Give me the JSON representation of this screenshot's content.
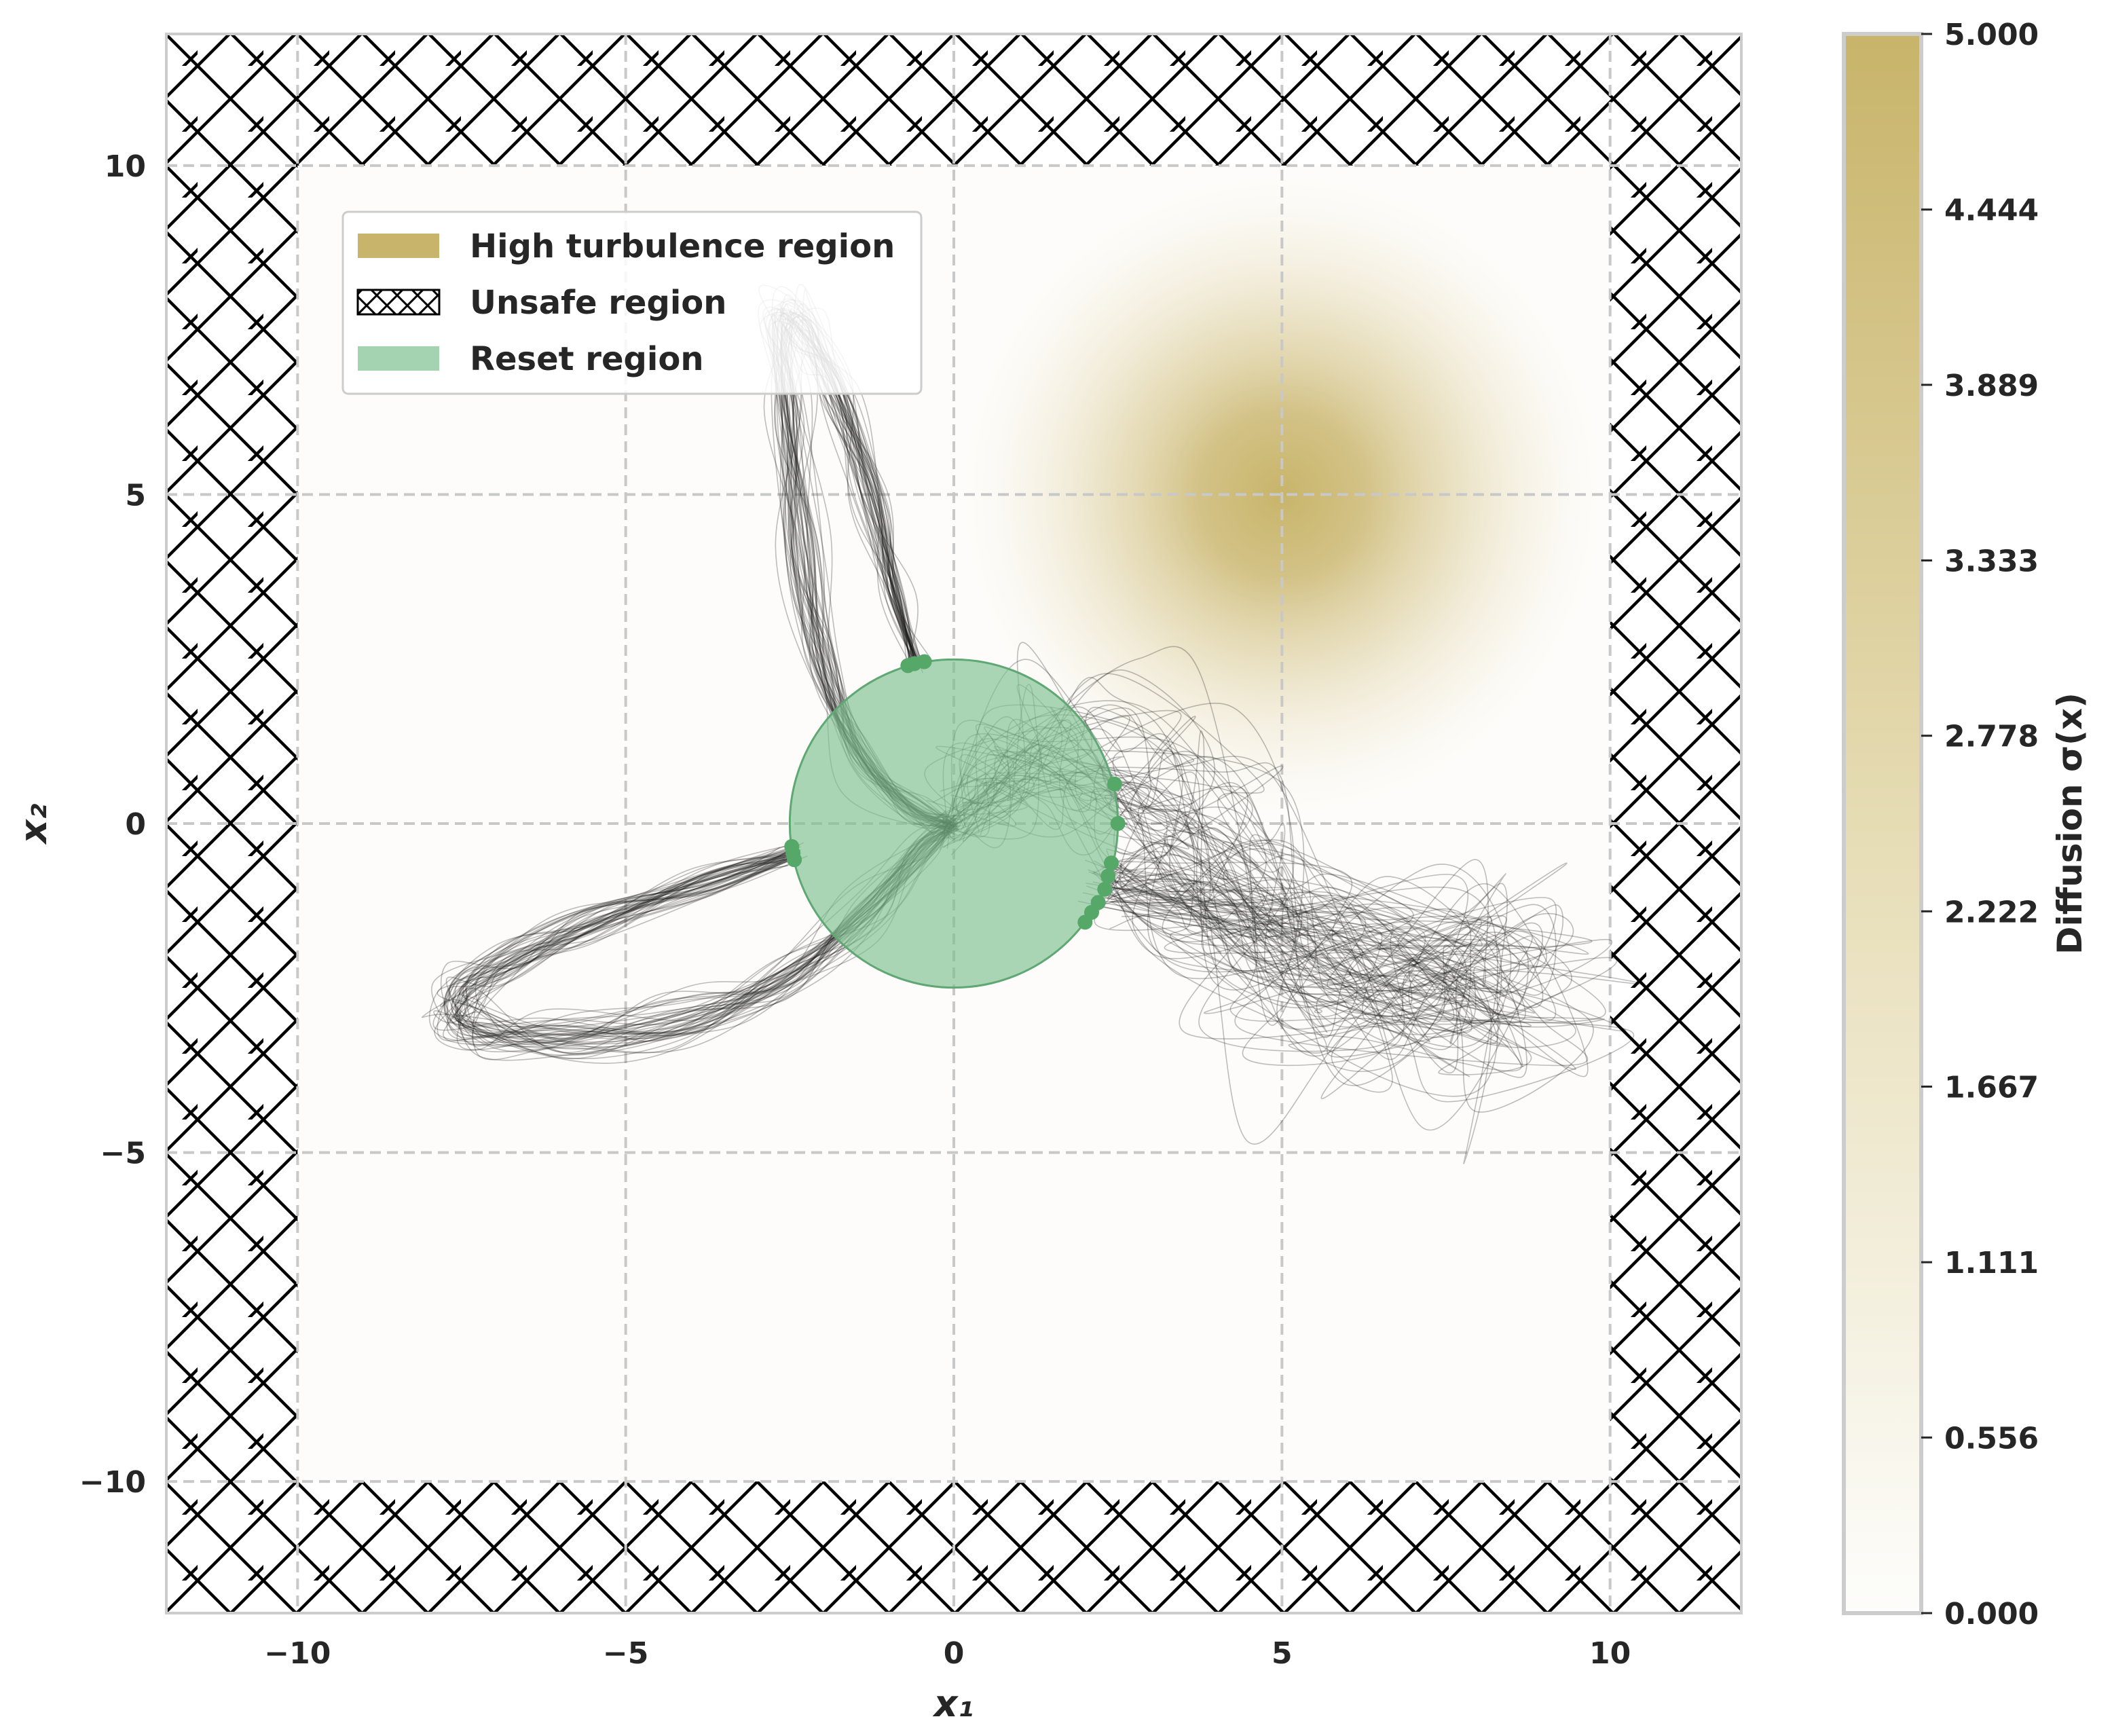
{
  "chart_data": {
    "type": "scatter",
    "xlabel": "x₁",
    "ylabel": "x₂",
    "xlim": [
      -12,
      12
    ],
    "ylim": [
      -12,
      12
    ],
    "xticks": [
      -10,
      -5,
      0,
      5,
      10
    ],
    "yticks": [
      -10,
      -5,
      0,
      5,
      10
    ],
    "xtick_labels": [
      "−10",
      "−5",
      "0",
      "5",
      "10"
    ],
    "ytick_labels": [
      "−10",
      "−5",
      "0",
      "5",
      "10"
    ],
    "grid": true,
    "legend": {
      "placement": "upper-left",
      "entries": [
        {
          "label": "High turbulence region",
          "kind": "patch",
          "color": "#c8b46a"
        },
        {
          "label": "Unsafe region",
          "kind": "hatch",
          "color": "#000000"
        },
        {
          "label": "Reset region",
          "kind": "patch",
          "color": "#7cc08f"
        }
      ]
    },
    "regions": {
      "safe_box": {
        "x": [
          -10,
          10
        ],
        "y": [
          -10,
          10
        ]
      },
      "unsafe": "outside safe box (hatched)",
      "reset_circle": {
        "center": [
          0,
          0
        ],
        "radius": 2.5,
        "color": "#7cc08f"
      },
      "turbulence": {
        "center": [
          5,
          5
        ],
        "sigma_max": 5.0,
        "extent_radius": 5
      }
    },
    "trajectory_lobes": [
      {
        "name": "upper lobe",
        "exit": [
          -0.6,
          2.43
        ],
        "apex": [
          -2.4,
          7.7
        ],
        "return": [
          0,
          0
        ]
      },
      {
        "name": "left lobe",
        "exit": [
          -2.45,
          -0.45
        ],
        "apex": [
          -7.6,
          -2.8
        ],
        "return": [
          0,
          0
        ]
      },
      {
        "name": "right lobe",
        "exit": [
          2.2,
          -0.9
        ],
        "apex": [
          8.5,
          -2.3
        ],
        "return": [
          0,
          0
        ]
      }
    ],
    "exit_points": [
      {
        "x": -0.6,
        "y": 2.43
      },
      {
        "x": -0.45,
        "y": 2.46
      },
      {
        "x": -0.7,
        "y": 2.4
      },
      {
        "x": -2.45,
        "y": -0.45
      },
      {
        "x": -2.43,
        "y": -0.55
      },
      {
        "x": -2.47,
        "y": -0.35
      },
      {
        "x": 2.45,
        "y": 0.6
      },
      {
        "x": 2.5,
        "y": 0.0
      },
      {
        "x": 2.4,
        "y": -0.6
      },
      {
        "x": 2.35,
        "y": -0.8
      },
      {
        "x": 2.3,
        "y": -1.0
      },
      {
        "x": 2.2,
        "y": -1.2
      },
      {
        "x": 2.1,
        "y": -1.35
      },
      {
        "x": 2.0,
        "y": -1.5
      }
    ],
    "colorbar": {
      "label": "Diffusion σ(x)",
      "range": [
        0,
        5
      ],
      "ticks": [
        "0.000",
        "0.556",
        "1.111",
        "1.667",
        "2.222",
        "2.778",
        "3.333",
        "3.889",
        "4.444",
        "5.000"
      ],
      "color_low": "#fcfbf7",
      "color_high": "#c8b46a"
    }
  }
}
